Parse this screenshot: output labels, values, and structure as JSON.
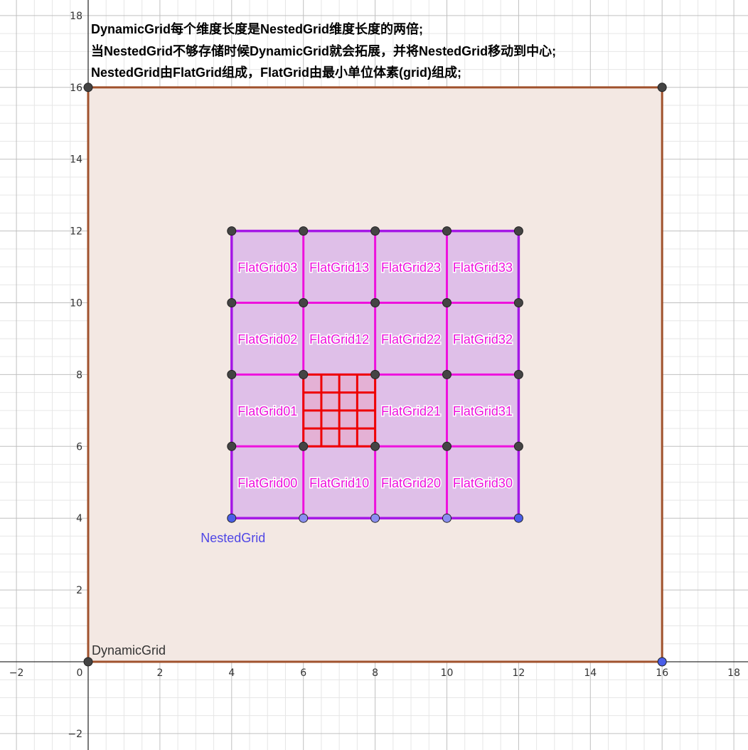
{
  "notes": [
    "DynamicGrid每个维度长度是NestedGrid维度长度的两倍;",
    "当NestedGrid不够存储时候DynamicGrid就会拓展，并将NestedGrid移动到中心;",
    "NestedGrid由FlatGrid组成，FlatGrid由最小单位体素(grid)组成;"
  ],
  "axes": {
    "x_ticks": [
      "−2",
      "0",
      "2",
      "4",
      "6",
      "8",
      "10",
      "12",
      "14",
      "16",
      "18"
    ],
    "y_ticks": [
      "18",
      "16",
      "14",
      "12",
      "10",
      "8",
      "6",
      "4",
      "2",
      "−2"
    ]
  },
  "dynamic_grid": {
    "label": "DynamicGrid",
    "range": [
      0,
      16
    ],
    "fill": "#f3e8e3",
    "stroke": "#a0522d"
  },
  "nested_grid": {
    "label": "NestedGrid",
    "range": [
      4,
      12
    ],
    "cell": 2,
    "fill": "#dfbfe8",
    "outer_stroke": "#a517e6",
    "inner_stroke": "#ee11dd",
    "label_color": "#4f46e5"
  },
  "flat_grids": [
    {
      "label": "FlatGrid03",
      "x": 5,
      "y": 11
    },
    {
      "label": "FlatGrid13",
      "x": 7,
      "y": 11
    },
    {
      "label": "FlatGrid23",
      "x": 9,
      "y": 11
    },
    {
      "label": "FlatGrid33",
      "x": 11,
      "y": 11
    },
    {
      "label": "FlatGrid02",
      "x": 5,
      "y": 9
    },
    {
      "label": "FlatGrid12",
      "x": 7,
      "y": 9
    },
    {
      "label": "FlatGrid22",
      "x": 9,
      "y": 9
    },
    {
      "label": "FlatGrid32",
      "x": 11,
      "y": 9
    },
    {
      "label": "FlatGrid01",
      "x": 5,
      "y": 7
    },
    {
      "label": "FlatGrid21",
      "x": 9,
      "y": 7
    },
    {
      "label": "FlatGrid31",
      "x": 11,
      "y": 7
    },
    {
      "label": "FlatGrid00",
      "x": 5,
      "y": 5
    },
    {
      "label": "FlatGrid10",
      "x": 7,
      "y": 5
    },
    {
      "label": "FlatGrid20",
      "x": 9,
      "y": 5
    },
    {
      "label": "FlatGrid30",
      "x": 11,
      "y": 5
    }
  ],
  "voxel_grid": {
    "origin": [
      6,
      6
    ],
    "size": 2,
    "divisions": 4,
    "stroke": "#ee0000"
  },
  "colors": {
    "point_dark": "#444444",
    "point_blue": "#4a5ee8",
    "point_light_blue": "#8a8ef0",
    "axis": "#333333",
    "major_grid": "#c0c0c0",
    "minor_grid": "#e6e6e6"
  }
}
